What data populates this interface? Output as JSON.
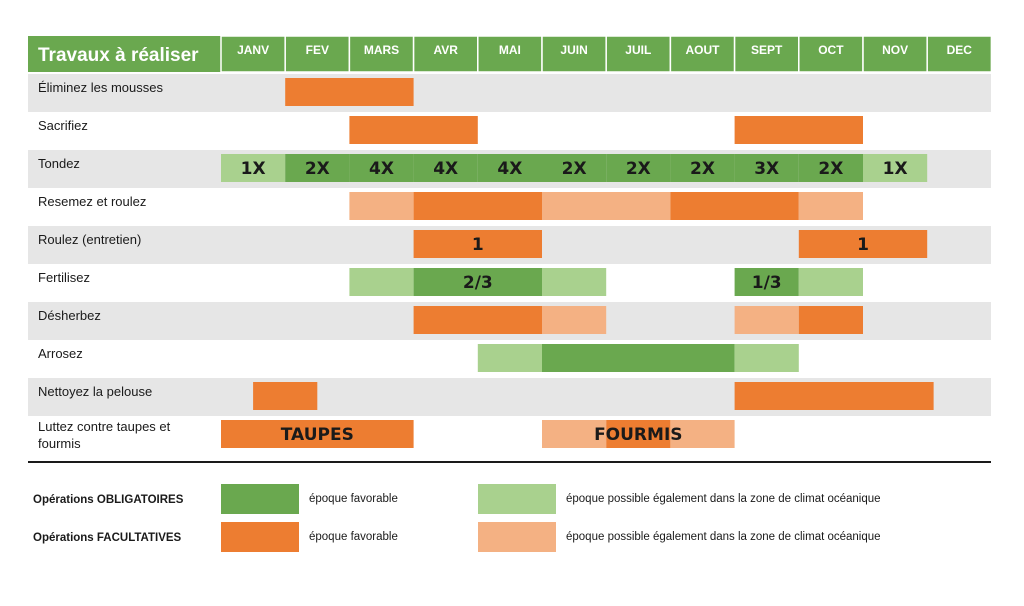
{
  "chart_data": {
    "type": "table",
    "title": "Travaux à réaliser",
    "months": [
      "JANV",
      "FEV",
      "MARS",
      "AVR",
      "MAI",
      "JUIN",
      "JUIL",
      "AOUT",
      "SEPT",
      "OCT",
      "NOV",
      "DEC"
    ],
    "colors": {
      "header": "#6aa84f",
      "obligatoire_favorable": "#6aa84f",
      "obligatoire_possible": "#a9d18e",
      "facultative_favorable": "#ed7d31",
      "facultative_possible": "#f4b183",
      "row_shade": "#e6e6e6"
    },
    "rows": [
      {
        "label": "Éliminez les mousses",
        "bars": [
          {
            "start": 1,
            "end": 3,
            "kind": "facultative_favorable"
          }
        ]
      },
      {
        "label": "Sacrifiez",
        "bars": [
          {
            "start": 2,
            "end": 4,
            "kind": "facultative_favorable"
          },
          {
            "start": 8,
            "end": 10,
            "kind": "facultative_favorable"
          }
        ]
      },
      {
        "label": "Tondez",
        "bars": [
          {
            "start": 0,
            "end": 1,
            "kind": "obligatoire_possible",
            "text": "1X"
          },
          {
            "start": 1,
            "end": 2,
            "kind": "obligatoire_favorable",
            "text": "2X"
          },
          {
            "start": 2,
            "end": 3,
            "kind": "obligatoire_favorable",
            "text": "4X"
          },
          {
            "start": 3,
            "end": 4,
            "kind": "obligatoire_favorable",
            "text": "4X"
          },
          {
            "start": 4,
            "end": 5,
            "kind": "obligatoire_favorable",
            "text": "4X"
          },
          {
            "start": 5,
            "end": 6,
            "kind": "obligatoire_favorable",
            "text": "2X"
          },
          {
            "start": 6,
            "end": 7,
            "kind": "obligatoire_favorable",
            "text": "2X"
          },
          {
            "start": 7,
            "end": 8,
            "kind": "obligatoire_favorable",
            "text": "2X"
          },
          {
            "start": 8,
            "end": 9,
            "kind": "obligatoire_favorable",
            "text": "3X"
          },
          {
            "start": 9,
            "end": 10,
            "kind": "obligatoire_favorable",
            "text": "2X"
          },
          {
            "start": 10,
            "end": 11,
            "kind": "obligatoire_possible",
            "text": "1X"
          }
        ]
      },
      {
        "label": "Resemez et roulez",
        "bars": [
          {
            "start": 2,
            "end": 3,
            "kind": "facultative_possible"
          },
          {
            "start": 3,
            "end": 5,
            "kind": "facultative_favorable"
          },
          {
            "start": 5,
            "end": 7,
            "kind": "facultative_possible"
          },
          {
            "start": 7,
            "end": 9,
            "kind": "facultative_favorable"
          },
          {
            "start": 9,
            "end": 10,
            "kind": "facultative_possible"
          }
        ]
      },
      {
        "label": "Roulez (entretien)",
        "bars": [
          {
            "start": 3,
            "end": 5,
            "kind": "facultative_favorable",
            "text": "1"
          },
          {
            "start": 9,
            "end": 11,
            "kind": "facultative_favorable",
            "text": "1"
          }
        ]
      },
      {
        "label": "Fertilisez",
        "bars": [
          {
            "start": 2,
            "end": 3,
            "kind": "obligatoire_possible"
          },
          {
            "start": 3,
            "end": 5,
            "kind": "obligatoire_favorable",
            "text": "2/3"
          },
          {
            "start": 5,
            "end": 6,
            "kind": "obligatoire_possible"
          },
          {
            "start": 8,
            "end": 9,
            "kind": "obligatoire_favorable",
            "text": "1/3"
          },
          {
            "start": 9,
            "end": 10,
            "kind": "obligatoire_possible"
          }
        ]
      },
      {
        "label": "Désherbez",
        "bars": [
          {
            "start": 3,
            "end": 5,
            "kind": "facultative_favorable"
          },
          {
            "start": 5,
            "end": 6,
            "kind": "facultative_possible"
          },
          {
            "start": 8,
            "end": 9,
            "kind": "facultative_possible"
          },
          {
            "start": 9,
            "end": 10,
            "kind": "facultative_favorable"
          }
        ]
      },
      {
        "label": "Arrosez",
        "bars": [
          {
            "start": 4,
            "end": 5,
            "kind": "obligatoire_possible"
          },
          {
            "start": 5,
            "end": 8,
            "kind": "obligatoire_favorable"
          },
          {
            "start": 8,
            "end": 9,
            "kind": "obligatoire_possible"
          }
        ]
      },
      {
        "label": "Nettoyez la pelouse",
        "bars": [
          {
            "start": 0.5,
            "end": 1.5,
            "kind": "facultative_favorable"
          },
          {
            "start": 8,
            "end": 11.1,
            "kind": "facultative_favorable"
          }
        ]
      },
      {
        "label": "Luttez contre taupes et fourmis",
        "label_lines": [
          "Luttez contre taupes et",
          "fourmis"
        ],
        "bars": [
          {
            "start": 0,
            "end": 3,
            "kind": "facultative_favorable",
            "text": "TAUPES"
          },
          {
            "start": 5,
            "end": 6,
            "kind": "facultative_possible"
          },
          {
            "start": 6,
            "end": 7,
            "kind": "facultative_favorable"
          },
          {
            "start": 7,
            "end": 8,
            "kind": "facultative_possible"
          }
        ],
        "overlay_text": {
          "start": 5,
          "end": 8,
          "text": "FOURMIS"
        }
      }
    ],
    "legend": [
      {
        "group": "Opérations OBLIGATOIRES",
        "favorable": "époque favorable",
        "possible": "époque possible également dans la zone de climat océanique",
        "fav_kind": "obligatoire_favorable",
        "pos_kind": "obligatoire_possible"
      },
      {
        "group": "Opérations FACULTATIVES",
        "favorable": "époque favorable",
        "possible": "époque possible également dans la zone de climat océanique",
        "fav_kind": "facultative_favorable",
        "pos_kind": "facultative_possible"
      }
    ]
  }
}
